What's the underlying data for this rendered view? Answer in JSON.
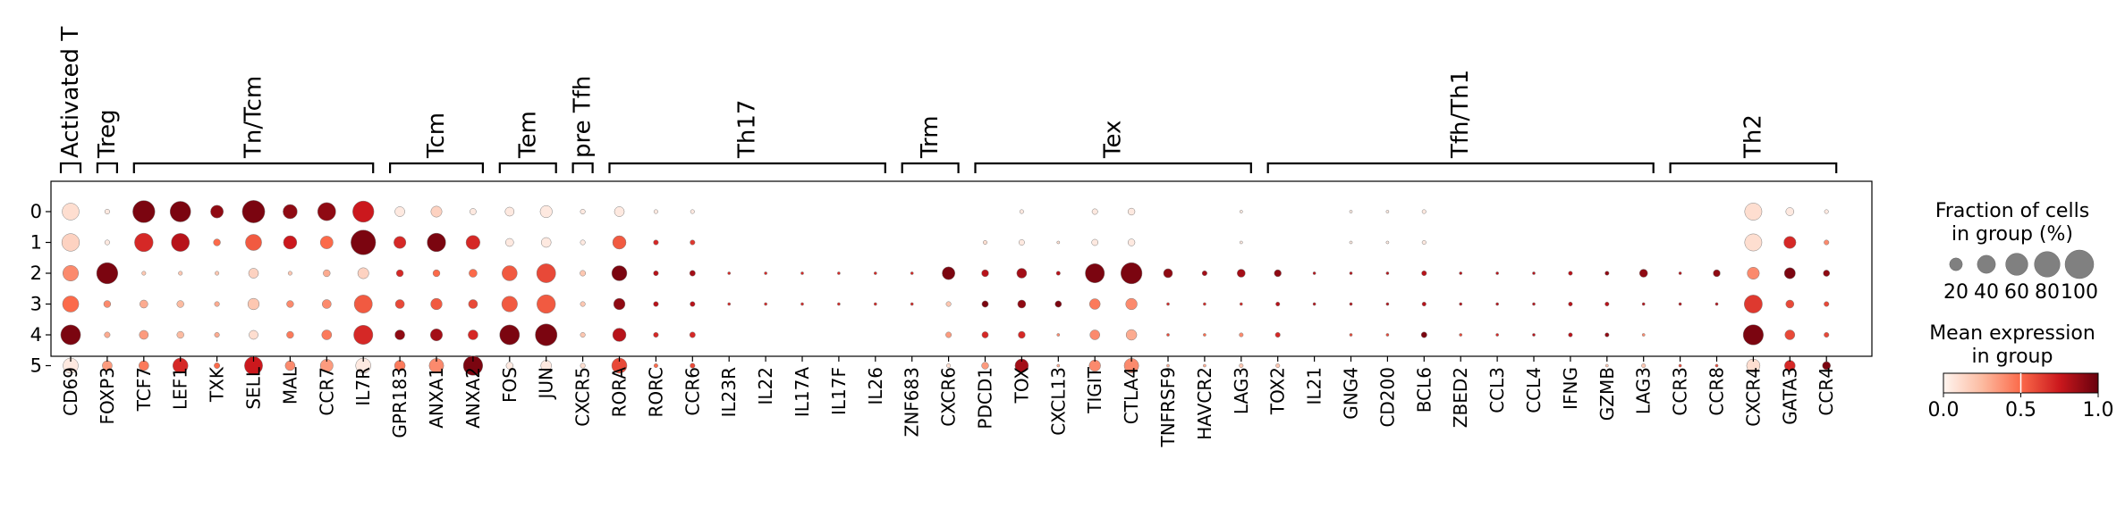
{
  "chart_data": {
    "type": "dotplot",
    "groups": [
      "0",
      "1",
      "2",
      "3",
      "4",
      "5"
    ],
    "genes": [
      "CD69",
      "FOXP3",
      "TCF7",
      "LEF1",
      "TXK",
      "SELL",
      "MAL",
      "CCR7",
      "IL7R",
      "GPR183",
      "ANXA1",
      "ANXA2",
      "FOS",
      "JUN",
      "CXCR5",
      "RORA",
      "RORC",
      "CCR6",
      "IL23R",
      "IL22",
      "IL17A",
      "IL17F",
      "IL26",
      "ZNF683",
      "CXCR6",
      "PDCD1",
      "TOX",
      "CXCL13",
      "TIGIT",
      "CTLA4",
      "TNFRSF9",
      "HAVCR2",
      "LAG3",
      "TOX2",
      "IL21",
      "GNG4",
      "CD200",
      "BCL6",
      "ZBED2",
      "CCL3",
      "CCL4",
      "IFNG",
      "GZMB",
      "LAG3",
      "CCR3",
      "CCR8",
      "CXCR4",
      "GATA3",
      "CCR4"
    ],
    "gene_groups": [
      {
        "label": "Activated T",
        "start": 0,
        "end": 0
      },
      {
        "label": "Treg",
        "start": 1,
        "end": 1
      },
      {
        "label": "Tn/Tcm",
        "start": 2,
        "end": 8
      },
      {
        "label": "Tcm",
        "start": 9,
        "end": 11
      },
      {
        "label": "Tem",
        "start": 12,
        "end": 13
      },
      {
        "label": "pre Tfh",
        "start": 14,
        "end": 14
      },
      {
        "label": "Th17",
        "start": 15,
        "end": 22
      },
      {
        "label": "Trm",
        "start": 23,
        "end": 24
      },
      {
        "label": "Tex",
        "start": 25,
        "end": 32
      },
      {
        "label": "Tfh/Th1",
        "start": 33,
        "end": 43
      },
      {
        "label": "Th2",
        "start": 44,
        "end": 48
      }
    ],
    "fraction": [
      [
        35,
        3,
        60,
        52,
        20,
        62,
        25,
        40,
        55,
        12,
        15,
        5,
        10,
        18,
        3,
        12,
        2,
        2,
        0,
        0,
        0,
        0,
        0,
        0,
        0,
        0,
        2,
        0,
        4,
        6,
        0,
        0,
        1,
        0,
        0,
        1,
        1,
        2,
        0,
        0,
        0,
        0,
        0,
        0,
        0,
        0,
        36,
        8,
        2
      ],
      [
        38,
        3,
        42,
        40,
        6,
        32,
        22,
        20,
        75,
        18,
        42,
        24,
        8,
        12,
        3,
        22,
        3,
        3,
        0,
        0,
        0,
        0,
        0,
        0,
        0,
        2,
        4,
        1,
        5,
        6,
        0,
        0,
        1,
        0,
        0,
        1,
        1,
        2,
        0,
        0,
        0,
        0,
        0,
        0,
        0,
        0,
        36,
        18,
        3
      ],
      [
        30,
        55,
        2,
        2,
        2,
        12,
        2,
        6,
        15,
        6,
        6,
        8,
        28,
        44,
        4,
        28,
        3,
        4,
        1,
        1,
        1,
        1,
        1,
        1,
        20,
        6,
        12,
        2,
        45,
        55,
        10,
        3,
        8,
        6,
        1,
        1,
        1,
        3,
        1,
        1,
        1,
        2,
        2,
        8,
        1,
        6,
        18,
        15,
        5
      ],
      [
        32,
        6,
        8,
        6,
        3,
        16,
        6,
        10,
        40,
        10,
        16,
        10,
        30,
        42,
        3,
        16,
        3,
        3,
        1,
        1,
        1,
        1,
        1,
        1,
        3,
        5,
        8,
        5,
        14,
        16,
        1,
        1,
        1,
        2,
        1,
        1,
        1,
        2,
        1,
        1,
        1,
        2,
        2,
        1,
        1,
        1,
        40,
        8,
        3
      ],
      [
        48,
        4,
        10,
        6,
        3,
        10,
        6,
        12,
        45,
        12,
        18,
        12,
        48,
        58,
        3,
        22,
        3,
        4,
        0,
        0,
        0,
        0,
        0,
        0,
        4,
        5,
        6,
        1,
        12,
        14,
        1,
        1,
        2,
        3,
        0,
        1,
        1,
        4,
        1,
        1,
        1,
        2,
        2,
        1,
        0,
        0,
        50,
        12,
        3
      ],
      [
        28,
        12,
        12,
        28,
        4,
        40,
        12,
        20,
        28,
        14,
        26,
        46,
        6,
        14,
        3,
        28,
        2,
        3,
        0,
        0,
        0,
        0,
        0,
        0,
        2,
        6,
        22,
        1,
        16,
        26,
        1,
        1,
        2,
        2,
        0,
        0,
        0,
        0,
        0,
        0,
        0,
        0,
        1,
        2,
        1,
        1,
        22,
        14,
        8
      ]
    ],
    "expression": [
      [
        0.1,
        0.05,
        0.95,
        0.95,
        0.9,
        0.95,
        0.9,
        0.9,
        0.75,
        0.05,
        0.15,
        0.05,
        0.05,
        0.05,
        0.05,
        0.05,
        0.05,
        0.05,
        0.05,
        0.05,
        0.05,
        0.05,
        0.05,
        0.05,
        0.05,
        0.05,
        0.05,
        0.05,
        0.05,
        0.05,
        0.05,
        0.05,
        0.05,
        0.05,
        0.05,
        0.05,
        0.05,
        0.05,
        0.05,
        0.05,
        0.05,
        0.05,
        0.05,
        0.05,
        0.05,
        0.05,
        0.1,
        0.05,
        0.05
      ],
      [
        0.15,
        0.05,
        0.7,
        0.8,
        0.5,
        0.55,
        0.75,
        0.5,
        0.95,
        0.7,
        0.95,
        0.7,
        0.05,
        0.05,
        0.05,
        0.55,
        0.7,
        0.65,
        0.2,
        0.05,
        0.05,
        0.05,
        0.05,
        0.05,
        0.05,
        0.1,
        0.05,
        0.1,
        0.05,
        0.05,
        0.05,
        0.05,
        0.05,
        0.05,
        0.05,
        0.05,
        0.05,
        0.05,
        0.05,
        0.05,
        0.05,
        0.05,
        0.05,
        0.05,
        0.05,
        0.05,
        0.1,
        0.7,
        0.4
      ],
      [
        0.4,
        0.95,
        0.2,
        0.2,
        0.2,
        0.15,
        0.2,
        0.3,
        0.15,
        0.7,
        0.5,
        0.5,
        0.55,
        0.6,
        0.2,
        0.95,
        0.8,
        0.85,
        0.7,
        0.7,
        0.7,
        0.7,
        0.7,
        0.7,
        0.95,
        0.8,
        0.85,
        0.8,
        0.95,
        0.95,
        0.9,
        0.85,
        0.85,
        0.9,
        0.8,
        0.8,
        0.8,
        0.8,
        0.8,
        0.8,
        0.8,
        0.8,
        0.9,
        0.9,
        0.8,
        0.9,
        0.4,
        0.95,
        0.9
      ],
      [
        0.5,
        0.4,
        0.3,
        0.25,
        0.3,
        0.2,
        0.4,
        0.4,
        0.55,
        0.6,
        0.55,
        0.6,
        0.55,
        0.55,
        0.2,
        0.9,
        0.8,
        0.8,
        0.7,
        0.7,
        0.7,
        0.7,
        0.7,
        0.7,
        0.2,
        0.95,
        0.9,
        0.95,
        0.45,
        0.4,
        0.7,
        0.7,
        0.7,
        0.8,
        0.8,
        0.8,
        0.8,
        0.8,
        0.8,
        0.8,
        0.8,
        0.8,
        0.8,
        0.8,
        0.8,
        0.8,
        0.65,
        0.6,
        0.6
      ],
      [
        0.95,
        0.3,
        0.35,
        0.25,
        0.3,
        0.1,
        0.45,
        0.45,
        0.7,
        0.9,
        0.85,
        0.7,
        0.95,
        0.95,
        0.2,
        0.8,
        0.7,
        0.7,
        0.4,
        0.4,
        0.4,
        0.4,
        0.4,
        0.4,
        0.35,
        0.7,
        0.7,
        0.4,
        0.4,
        0.3,
        0.6,
        0.5,
        0.4,
        0.7,
        0.7,
        0.6,
        0.6,
        0.95,
        0.6,
        0.7,
        0.8,
        0.8,
        0.9,
        0.4,
        0.4,
        0.4,
        0.95,
        0.6,
        0.6
      ],
      [
        0.05,
        0.35,
        0.45,
        0.7,
        0.5,
        0.75,
        0.4,
        0.35,
        0.05,
        0.45,
        0.4,
        0.95,
        0.05,
        0.05,
        0.1,
        0.6,
        0.5,
        0.6,
        0.2,
        0.2,
        0.2,
        0.2,
        0.2,
        0.2,
        0.1,
        0.35,
        0.85,
        0.3,
        0.4,
        0.4,
        0.3,
        0.3,
        0.2,
        0.2,
        0.2,
        0.2,
        0.2,
        0.2,
        0.2,
        0.2,
        0.2,
        0.2,
        0.2,
        0.2,
        0.6,
        0.6,
        0.1,
        0.7,
        0.95
      ]
    ],
    "size_legend": {
      "title": "Fraction of cells\nin group (%)",
      "values": [
        20,
        40,
        60,
        80,
        100
      ]
    },
    "color_legend": {
      "title": "Mean expression\nin group",
      "ticks": [
        "0.0",
        "0.5",
        "1.0"
      ],
      "range": [
        0,
        1
      ],
      "colors": [
        "#fff5f0",
        "#fcbba1",
        "#fb6a4a",
        "#cb181d",
        "#67000d"
      ]
    }
  }
}
